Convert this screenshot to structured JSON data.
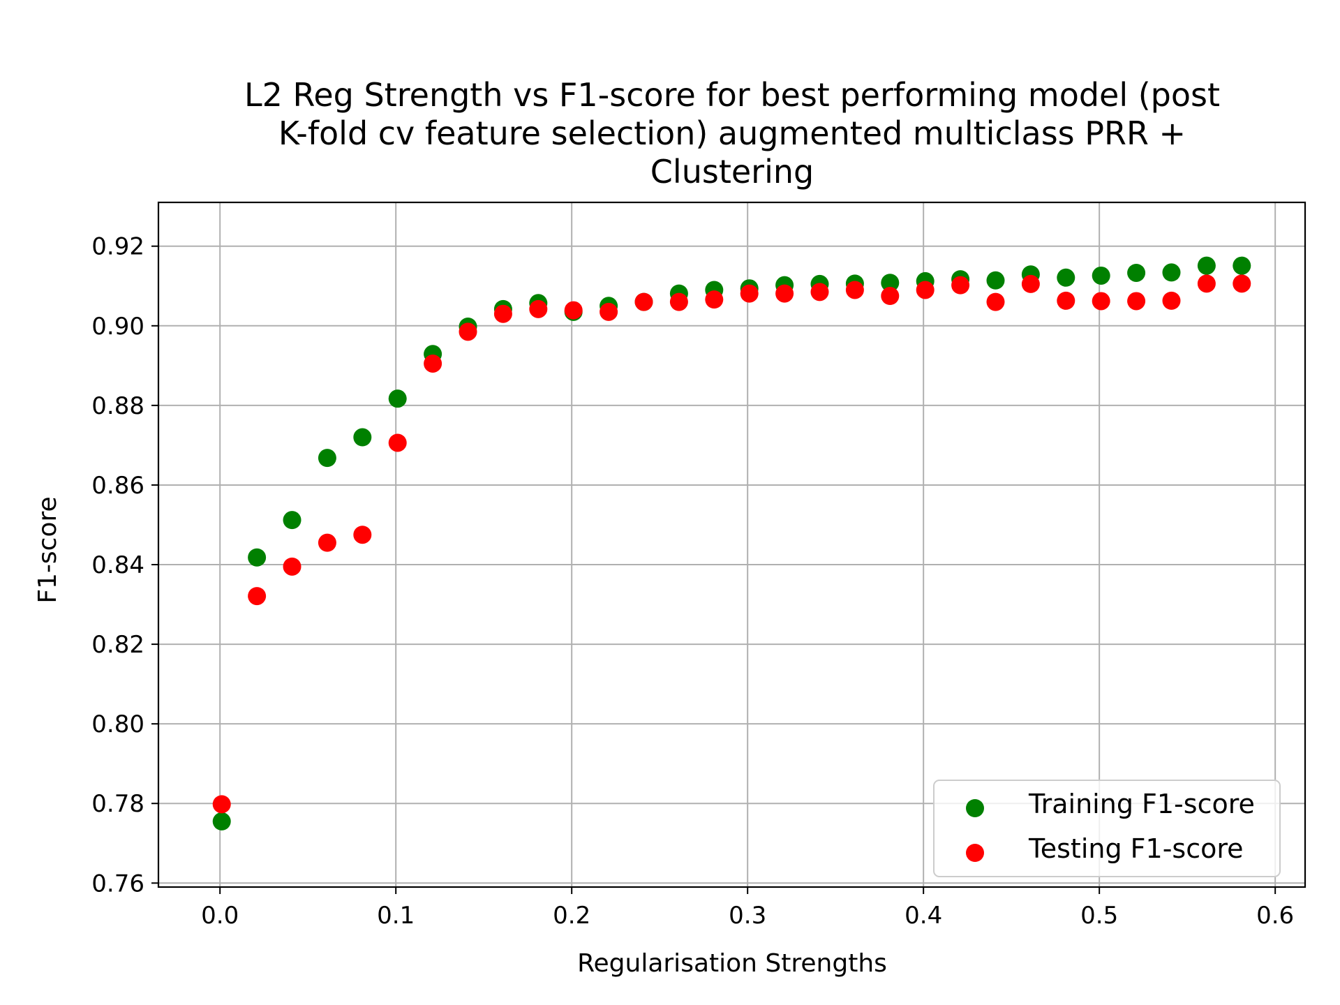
{
  "chart_data": {
    "type": "scatter",
    "title_lines": [
      "L2 Reg Strength vs F1-score for best performing model (post",
      "K-fold cv feature selection) augmented multiclass PRR +",
      "Clustering"
    ],
    "xlabel": "Regularisation Strengths",
    "ylabel": "F1-score",
    "xlim": [
      -0.035,
      0.617
    ],
    "ylim": [
      0.759,
      0.931
    ],
    "xticks": [
      0.0,
      0.1,
      0.2,
      0.3,
      0.4,
      0.5,
      0.6
    ],
    "xtick_labels": [
      "0.0",
      "0.1",
      "0.2",
      "0.3",
      "0.4",
      "0.5",
      "0.6"
    ],
    "yticks": [
      0.76,
      0.78,
      0.8,
      0.82,
      0.84,
      0.86,
      0.88,
      0.9,
      0.92
    ],
    "ytick_labels": [
      "0.76",
      "0.78",
      "0.80",
      "0.82",
      "0.84",
      "0.86",
      "0.88",
      "0.90",
      "0.92"
    ],
    "grid": true,
    "legend_position": "lower-right",
    "x": [
      0.001,
      0.021,
      0.041,
      0.061,
      0.081,
      0.101,
      0.121,
      0.141,
      0.161,
      0.181,
      0.201,
      0.221,
      0.241,
      0.261,
      0.281,
      0.301,
      0.321,
      0.341,
      0.361,
      0.381,
      0.401,
      0.421,
      0.441,
      0.461,
      0.481,
      0.501,
      0.521,
      0.541,
      0.561,
      0.581
    ],
    "series": [
      {
        "name": "Training F1-score",
        "color": "#008000",
        "values": [
          0.7755,
          0.8418,
          0.8512,
          0.8668,
          0.872,
          0.8817,
          0.8929,
          0.8998,
          0.9042,
          0.9057,
          0.9035,
          0.905,
          0.906,
          0.9081,
          0.909,
          0.9094,
          0.9102,
          0.9105,
          0.9106,
          0.9108,
          0.9112,
          0.9117,
          0.9114,
          0.9129,
          0.9121,
          0.9126,
          0.9133,
          0.9134,
          0.9151,
          0.9151
        ]
      },
      {
        "name": "Testing F1-score",
        "color": "#ff0000",
        "values": [
          0.7798,
          0.8321,
          0.8395,
          0.8455,
          0.8475,
          0.8706,
          0.8905,
          0.8985,
          0.903,
          0.9042,
          0.9039,
          0.9035,
          0.906,
          0.906,
          0.9066,
          0.9081,
          0.9081,
          0.9085,
          0.909,
          0.9075,
          0.909,
          0.9102,
          0.906,
          0.9105,
          0.9063,
          0.9062,
          0.9062,
          0.9063,
          0.9106,
          0.9106
        ]
      }
    ]
  }
}
